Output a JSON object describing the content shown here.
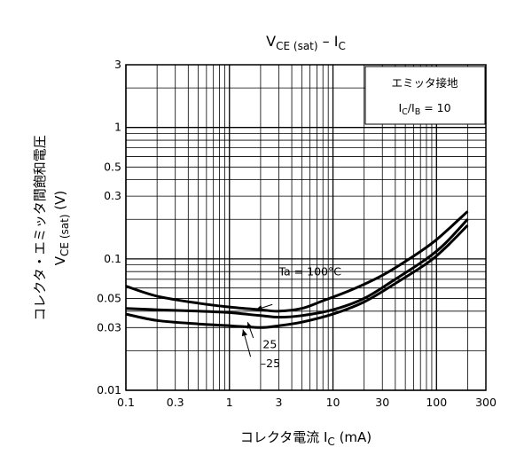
{
  "chart_data": {
    "type": "line",
    "title": {
      "main": "V",
      "sub1": "CE (sat)",
      "dash": " – I",
      "sub2": "C"
    },
    "xlabel": {
      "main": "コレクタ電流 I",
      "sub": "C",
      "tail": " (mA)"
    },
    "ylabel": {
      "line1": "コレクタ・エミッタ間飽和電圧",
      "line2_main": "V",
      "line2_sub": "CE (sat)",
      "line2_tail": " (V)"
    },
    "x_scale": "log",
    "y_scale": "log",
    "xlim": [
      0.1,
      300
    ],
    "ylim": [
      0.01,
      3
    ],
    "x_ticks": [
      {
        "v": 0.1,
        "label": "0.1"
      },
      {
        "v": 0.3,
        "label": "0.3"
      },
      {
        "v": 1,
        "label": "1"
      },
      {
        "v": 3,
        "label": "3"
      },
      {
        "v": 10,
        "label": "10"
      },
      {
        "v": 30,
        "label": "30"
      },
      {
        "v": 100,
        "label": "100"
      },
      {
        "v": 300,
        "label": "300"
      }
    ],
    "y_ticks": [
      {
        "v": 0.01,
        "label": "0.01"
      },
      {
        "v": 0.03,
        "label": "0.03"
      },
      {
        "v": 0.05,
        "label": "0.05"
      },
      {
        "v": 0.1,
        "label": "0.1"
      },
      {
        "v": 0.3,
        "label": "0.3"
      },
      {
        "v": 0.5,
        "label": "0.5"
      },
      {
        "v": 1,
        "label": "1"
      },
      {
        "v": 3,
        "label": "3"
      }
    ],
    "grid": true,
    "legend_box": {
      "line1": "エミッタ接地",
      "line2_a": "I",
      "line2_a_sub": "C",
      "line2_b": "/I",
      "line2_b_sub": "B",
      "line2_c": " = 10",
      "placement": "top-right"
    },
    "series": [
      {
        "name": "Ta = 100°C",
        "points": [
          [
            0.1,
            0.062
          ],
          [
            0.2,
            0.052
          ],
          [
            0.5,
            0.046
          ],
          [
            1,
            0.043
          ],
          [
            2,
            0.041
          ],
          [
            3,
            0.04
          ],
          [
            5,
            0.042
          ],
          [
            8,
            0.048
          ],
          [
            15,
            0.058
          ],
          [
            30,
            0.075
          ],
          [
            60,
            0.105
          ],
          [
            100,
            0.14
          ],
          [
            200,
            0.23
          ]
        ]
      },
      {
        "name": "25",
        "points": [
          [
            0.1,
            0.042
          ],
          [
            0.2,
            0.041
          ],
          [
            0.5,
            0.04
          ],
          [
            1,
            0.039
          ],
          [
            2,
            0.037
          ],
          [
            3,
            0.036
          ],
          [
            5,
            0.037
          ],
          [
            10,
            0.041
          ],
          [
            20,
            0.05
          ],
          [
            40,
            0.07
          ],
          [
            80,
            0.1
          ],
          [
            120,
            0.13
          ],
          [
            200,
            0.2
          ]
        ]
      },
      {
        "name": "–25",
        "points": [
          [
            0.1,
            0.038
          ],
          [
            0.2,
            0.034
          ],
          [
            0.5,
            0.032
          ],
          [
            1,
            0.031
          ],
          [
            2,
            0.03
          ],
          [
            3,
            0.031
          ],
          [
            5,
            0.033
          ],
          [
            10,
            0.038
          ],
          [
            20,
            0.047
          ],
          [
            40,
            0.065
          ],
          [
            80,
            0.092
          ],
          [
            120,
            0.12
          ],
          [
            200,
            0.18
          ]
        ]
      }
    ],
    "annotations": [
      {
        "text": "Ta = 100°C",
        "x": 3,
        "y": 0.075,
        "ax": 2.6,
        "ay": 0.045,
        "tx": 1.8,
        "ty": 0.041
      },
      {
        "text": "25",
        "x": 2.1,
        "y": 0.021,
        "ax": 1.7,
        "ay": 0.025,
        "tx": 1.5,
        "ty": 0.033
      },
      {
        "text": "–25",
        "x": 2.0,
        "y": 0.015,
        "ax": 1.6,
        "ay": 0.018,
        "tx": 1.35,
        "ty": 0.029
      }
    ]
  }
}
